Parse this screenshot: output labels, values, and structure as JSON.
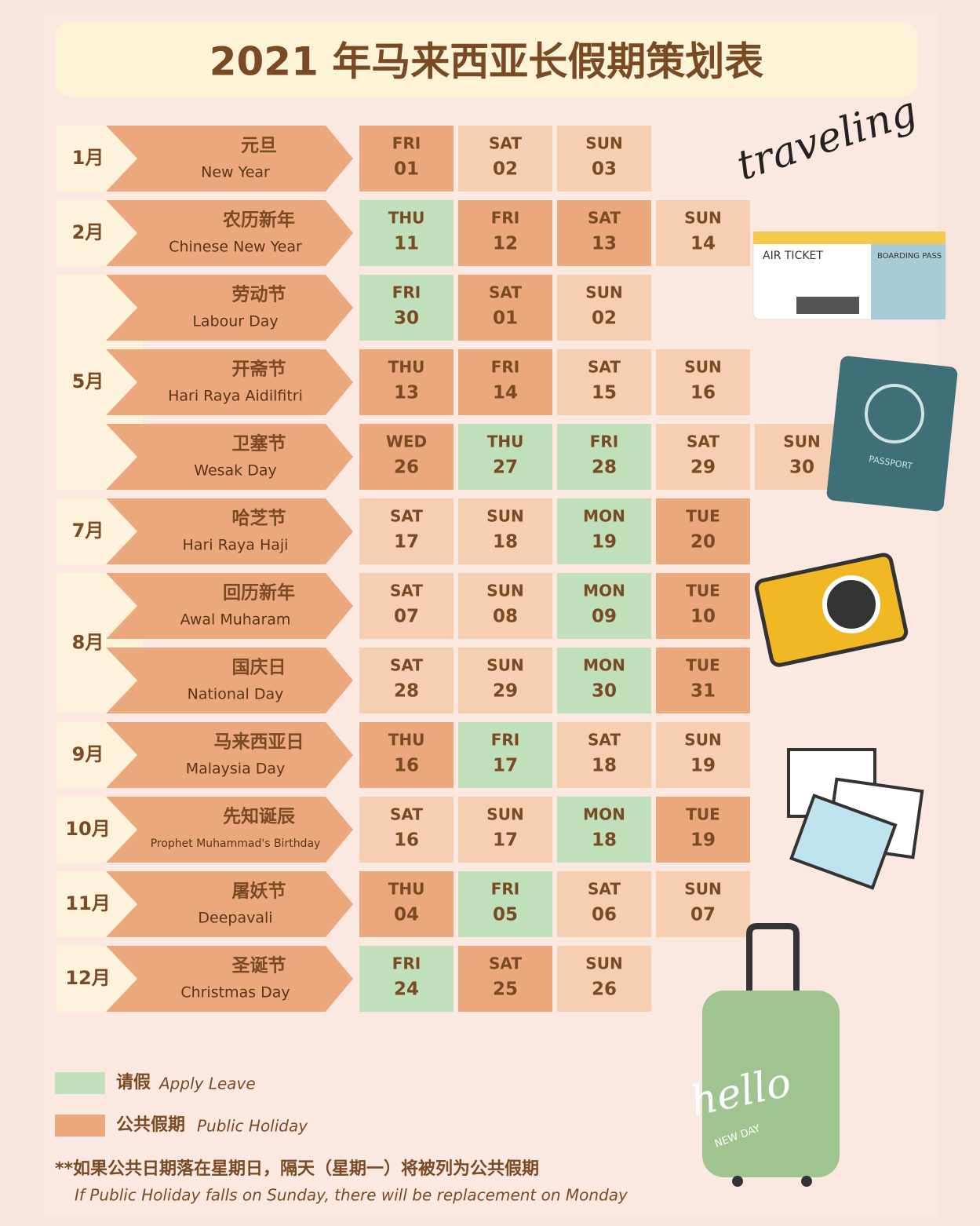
{
  "title": "2021 年马来西亚长假期策划表",
  "colors": {
    "leave": "#bfe0bb",
    "holiday": "#eba87d",
    "weekend": "#f6cfb3"
  },
  "months": [
    {
      "month": "1月",
      "holidays": [
        {
          "zh": "元旦",
          "en": "New Year",
          "days": [
            {
              "day": "FRI",
              "date": "01",
              "kind": "holiday"
            },
            {
              "day": "SAT",
              "date": "02",
              "kind": "weekend"
            },
            {
              "day": "SUN",
              "date": "03",
              "kind": "weekend"
            }
          ]
        }
      ]
    },
    {
      "month": "2月",
      "holidays": [
        {
          "zh": "农历新年",
          "en": "Chinese New Year",
          "days": [
            {
              "day": "THU",
              "date": "11",
              "kind": "leave"
            },
            {
              "day": "FRI",
              "date": "12",
              "kind": "holiday"
            },
            {
              "day": "SAT",
              "date": "13",
              "kind": "holiday"
            },
            {
              "day": "SUN",
              "date": "14",
              "kind": "weekend"
            }
          ]
        }
      ]
    },
    {
      "month": "5月",
      "holidays": [
        {
          "zh": "劳动节",
          "en": "Labour Day",
          "days": [
            {
              "day": "FRI",
              "date": "30",
              "kind": "leave"
            },
            {
              "day": "SAT",
              "date": "01",
              "kind": "holiday"
            },
            {
              "day": "SUN",
              "date": "02",
              "kind": "weekend"
            }
          ]
        },
        {
          "zh": "开斋节",
          "en": "Hari Raya Aidilfitri",
          "days": [
            {
              "day": "THU",
              "date": "13",
              "kind": "holiday"
            },
            {
              "day": "FRI",
              "date": "14",
              "kind": "holiday"
            },
            {
              "day": "SAT",
              "date": "15",
              "kind": "weekend"
            },
            {
              "day": "SUN",
              "date": "16",
              "kind": "weekend"
            }
          ]
        },
        {
          "zh": "卫塞节",
          "en": "Wesak Day",
          "days": [
            {
              "day": "WED",
              "date": "26",
              "kind": "holiday"
            },
            {
              "day": "THU",
              "date": "27",
              "kind": "leave"
            },
            {
              "day": "FRI",
              "date": "28",
              "kind": "leave"
            },
            {
              "day": "SAT",
              "date": "29",
              "kind": "weekend"
            },
            {
              "day": "SUN",
              "date": "30",
              "kind": "weekend"
            }
          ]
        }
      ]
    },
    {
      "month": "7月",
      "holidays": [
        {
          "zh": "哈芝节",
          "en": "Hari Raya Haji",
          "days": [
            {
              "day": "SAT",
              "date": "17",
              "kind": "weekend"
            },
            {
              "day": "SUN",
              "date": "18",
              "kind": "weekend"
            },
            {
              "day": "MON",
              "date": "19",
              "kind": "leave"
            },
            {
              "day": "TUE",
              "date": "20",
              "kind": "holiday"
            }
          ]
        }
      ]
    },
    {
      "month": "8月",
      "holidays": [
        {
          "zh": "回历新年",
          "en": "Awal Muharam",
          "days": [
            {
              "day": "SAT",
              "date": "07",
              "kind": "weekend"
            },
            {
              "day": "SUN",
              "date": "08",
              "kind": "weekend"
            },
            {
              "day": "MON",
              "date": "09",
              "kind": "leave"
            },
            {
              "day": "TUE",
              "date": "10",
              "kind": "holiday"
            }
          ]
        },
        {
          "zh": "国庆日",
          "en": "National Day",
          "days": [
            {
              "day": "SAT",
              "date": "28",
              "kind": "weekend"
            },
            {
              "day": "SUN",
              "date": "29",
              "kind": "weekend"
            },
            {
              "day": "MON",
              "date": "30",
              "kind": "leave"
            },
            {
              "day": "TUE",
              "date": "31",
              "kind": "holiday"
            }
          ]
        }
      ]
    },
    {
      "month": "9月",
      "holidays": [
        {
          "zh": "马来西亚日",
          "en": "Malaysia Day",
          "days": [
            {
              "day": "THU",
              "date": "16",
              "kind": "holiday"
            },
            {
              "day": "FRI",
              "date": "17",
              "kind": "leave"
            },
            {
              "day": "SAT",
              "date": "18",
              "kind": "weekend"
            },
            {
              "day": "SUN",
              "date": "19",
              "kind": "weekend"
            }
          ]
        }
      ]
    },
    {
      "month": "10月",
      "holidays": [
        {
          "zh": "先知诞辰",
          "en": "Prophet Muhammad's Birthday",
          "days": [
            {
              "day": "SAT",
              "date": "16",
              "kind": "weekend"
            },
            {
              "day": "SUN",
              "date": "17",
              "kind": "weekend"
            },
            {
              "day": "MON",
              "date": "18",
              "kind": "leave"
            },
            {
              "day": "TUE",
              "date": "19",
              "kind": "holiday"
            }
          ]
        }
      ]
    },
    {
      "month": "11月",
      "holidays": [
        {
          "zh": "屠妖节",
          "en": "Deepavali",
          "days": [
            {
              "day": "THU",
              "date": "04",
              "kind": "holiday"
            },
            {
              "day": "FRI",
              "date": "05",
              "kind": "leave"
            },
            {
              "day": "SAT",
              "date": "06",
              "kind": "weekend"
            },
            {
              "day": "SUN",
              "date": "07",
              "kind": "weekend"
            }
          ]
        }
      ]
    },
    {
      "month": "12月",
      "holidays": [
        {
          "zh": "圣诞节",
          "en": "Christmas Day",
          "days": [
            {
              "day": "FRI",
              "date": "24",
              "kind": "leave"
            },
            {
              "day": "SAT",
              "date": "25",
              "kind": "holiday"
            },
            {
              "day": "SUN",
              "date": "26",
              "kind": "weekend"
            }
          ]
        }
      ]
    }
  ],
  "legend": [
    {
      "zh": "请假",
      "en": "Apply Leave",
      "kind": "leave"
    },
    {
      "zh": "公共假期",
      "en": "Public Holiday",
      "kind": "holiday"
    }
  ],
  "note": {
    "zh": "**如果公共日期落在星期日，隔天（星期一）将被列为公共假期",
    "en": "If Public Holiday falls on Sunday, there will be replacement on Monday"
  },
  "decorations": {
    "traveling": "traveling",
    "ticket": "AIR TICKET",
    "boarding": "BOARDING PASS",
    "passport": "PASSPORT",
    "hello": "hello",
    "new_day": "NEW DAY"
  }
}
